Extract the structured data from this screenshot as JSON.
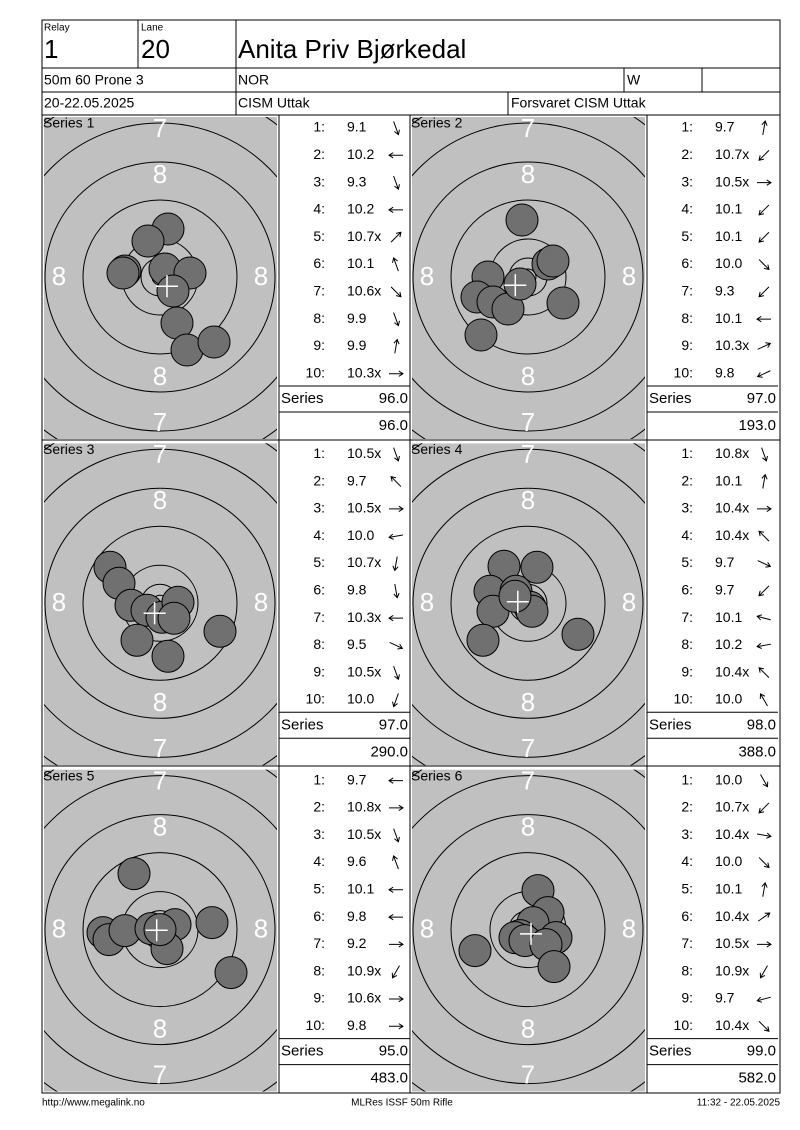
{
  "header": {
    "relay_label": "Relay",
    "relay": "1",
    "lane_label": "Lane",
    "lane": "20",
    "name": "Anita Priv Bjørkedal",
    "event": "50m 60 Prone 3",
    "nation": "NOR",
    "gender": "W",
    "date": "20-22.05.2025",
    "competition": "CISM Uttak",
    "organizer": "Forsvaret CISM Uttak"
  },
  "target_labels": [
    "7",
    "8"
  ],
  "series": [
    {
      "title": "Series 1",
      "shot_numbers": [
        "1:",
        "2:",
        "3:",
        "4:",
        "5:",
        "6:",
        "7:",
        "8:",
        "9:",
        "10:"
      ],
      "scores": [
        "9.1",
        "10.2",
        "9.3",
        "10.2",
        "10.7x",
        "10.1",
        "10.6x",
        "9.9",
        "9.9",
        "10.3x"
      ],
      "total_label": "Series",
      "total": "96.0",
      "cumulative": "96.0"
    },
    {
      "title": "Series 2",
      "shot_numbers": [
        "1:",
        "2:",
        "3:",
        "4:",
        "5:",
        "6:",
        "7:",
        "8:",
        "9:",
        "10:"
      ],
      "scores": [
        "9.7",
        "10.7x",
        "10.5x",
        "10.1",
        "10.1",
        "10.0",
        "9.3",
        "10.1",
        "10.3x",
        "9.8"
      ],
      "total_label": "Series",
      "total": "97.0",
      "cumulative": "193.0"
    },
    {
      "title": "Series 3",
      "shot_numbers": [
        "1:",
        "2:",
        "3:",
        "4:",
        "5:",
        "6:",
        "7:",
        "8:",
        "9:",
        "10:"
      ],
      "scores": [
        "10.5x",
        "9.7",
        "10.5x",
        "10.0",
        "10.7x",
        "9.8",
        "10.3x",
        "9.5",
        "10.5x",
        "10.0"
      ],
      "total_label": "Series",
      "total": "97.0",
      "cumulative": "290.0"
    },
    {
      "title": "Series 4",
      "shot_numbers": [
        "1:",
        "2:",
        "3:",
        "4:",
        "5:",
        "6:",
        "7:",
        "8:",
        "9:",
        "10:"
      ],
      "scores": [
        "10.8x",
        "10.1",
        "10.4x",
        "10.4x",
        "9.7",
        "9.7",
        "10.1",
        "10.2",
        "10.4x",
        "10.0"
      ],
      "total_label": "Series",
      "total": "98.0",
      "cumulative": "388.0"
    },
    {
      "title": "Series 5",
      "shot_numbers": [
        "1:",
        "2:",
        "3:",
        "4:",
        "5:",
        "6:",
        "7:",
        "8:",
        "9:",
        "10:"
      ],
      "scores": [
        "9.7",
        "10.8x",
        "10.5x",
        "9.6",
        "10.1",
        "9.8",
        "9.2",
        "10.9x",
        "10.6x",
        "9.8"
      ],
      "total_label": "Series",
      "total": "95.0",
      "cumulative": "483.0"
    },
    {
      "title": "Series 6",
      "shot_numbers": [
        "1:",
        "2:",
        "3:",
        "4:",
        "5:",
        "6:",
        "7:",
        "8:",
        "9:",
        "10:"
      ],
      "scores": [
        "10.0",
        "10.7x",
        "10.4x",
        "10.0",
        "10.1",
        "10.4x",
        "10.5x",
        "10.9x",
        "9.7",
        "10.4x"
      ],
      "total_label": "Series",
      "total": "99.0",
      "cumulative": "582.0"
    }
  ],
  "footer": {
    "url": "http://www.megalink.no",
    "software": "MLRes ISSF 50m Rifle",
    "timestamp": "11:32 - 22.05.2025"
  }
}
